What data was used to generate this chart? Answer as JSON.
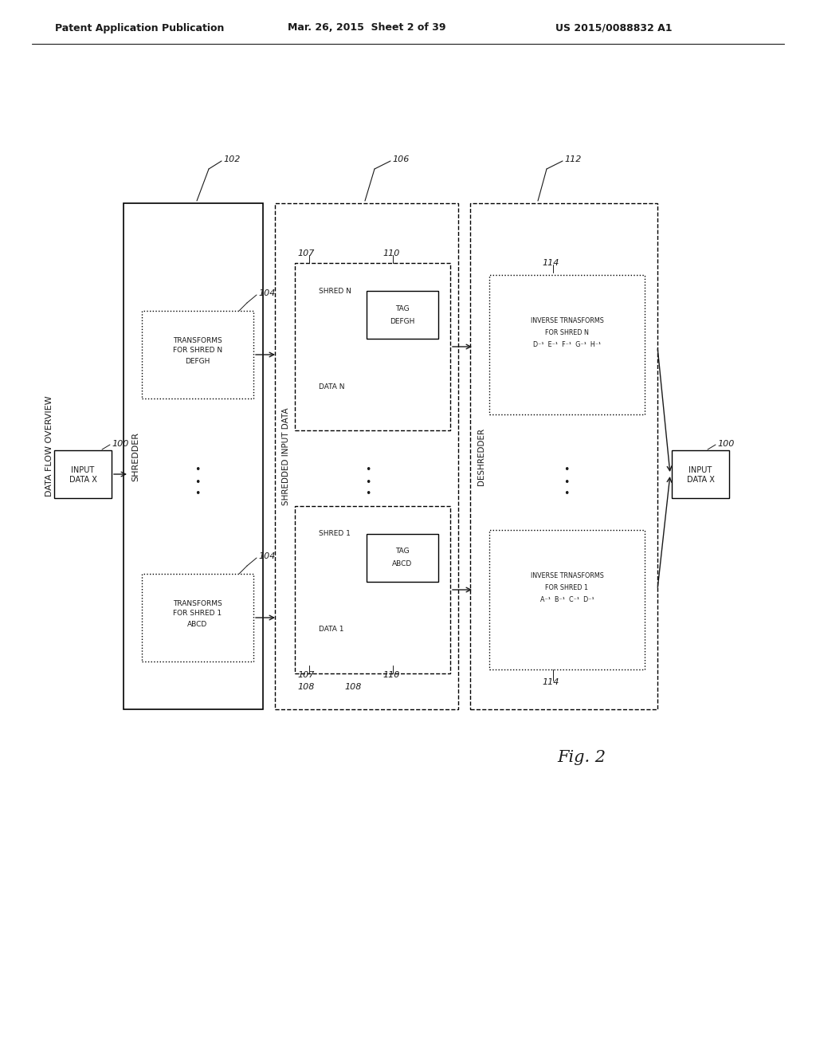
{
  "header_left": "Patent Application Publication",
  "header_mid": "Mar. 26, 2015  Sheet 2 of 39",
  "header_right": "US 2015/0088832 A1",
  "fig_label": "Fig. 2",
  "bg_color": "#ffffff",
  "text_color": "#1a1a1a"
}
